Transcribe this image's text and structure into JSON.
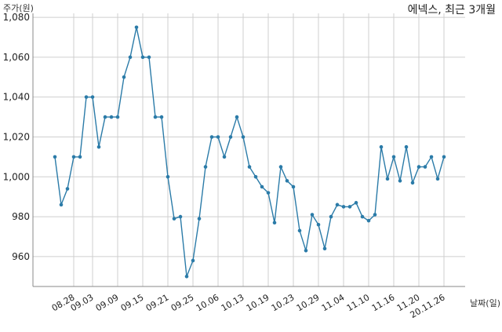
{
  "chart_data": {
    "type": "line",
    "title": "에넥스, 최근 3개월",
    "ylabel": "주가(원)",
    "xlabel": "날짜(일)",
    "ylim": [
      945,
      1082
    ],
    "y_ticks": [
      960,
      980,
      1000,
      1020,
      1040,
      1060,
      1080
    ],
    "y_tick_labels": [
      "960",
      "980",
      "1,000",
      "1,020",
      "1,040",
      "1,060",
      "1,080"
    ],
    "x_tick_labels": [
      {
        "index": 3,
        "label": "08.28"
      },
      {
        "index": 6,
        "label": "09.03"
      },
      {
        "index": 10,
        "label": "09.09"
      },
      {
        "index": 14,
        "label": "09.15"
      },
      {
        "index": 18,
        "label": "09.21"
      },
      {
        "index": 22,
        "label": "09.25"
      },
      {
        "index": 26,
        "label": "10.06"
      },
      {
        "index": 30,
        "label": "10.13"
      },
      {
        "index": 34,
        "label": "10.19"
      },
      {
        "index": 38,
        "label": "10.23"
      },
      {
        "index": 42,
        "label": "10.29"
      },
      {
        "index": 46,
        "label": "11.04"
      },
      {
        "index": 50,
        "label": "11.10"
      },
      {
        "index": 54,
        "label": "11.16"
      },
      {
        "index": 58,
        "label": "11.20"
      },
      {
        "index": 62,
        "label": "20.11.26"
      }
    ],
    "grid": true,
    "series": [
      {
        "values": [
          1010,
          986,
          994,
          1010,
          1010,
          1040,
          1040,
          1015,
          1030,
          1030,
          1030,
          1050,
          1060,
          1075,
          1060,
          1060,
          1030,
          1030,
          1000,
          979,
          980,
          950,
          958,
          979,
          1005,
          1020,
          1020,
          1010,
          1020,
          1030,
          1020,
          1005,
          1000,
          995,
          992,
          977,
          1005,
          998,
          995,
          973,
          963,
          981,
          976,
          964,
          980,
          986,
          985,
          985,
          987,
          980,
          978,
          981,
          1015,
          999,
          1010,
          998,
          1015,
          997,
          1005,
          1005,
          1010,
          999,
          1010
        ]
      }
    ],
    "line_color": "#2b7ba8"
  }
}
